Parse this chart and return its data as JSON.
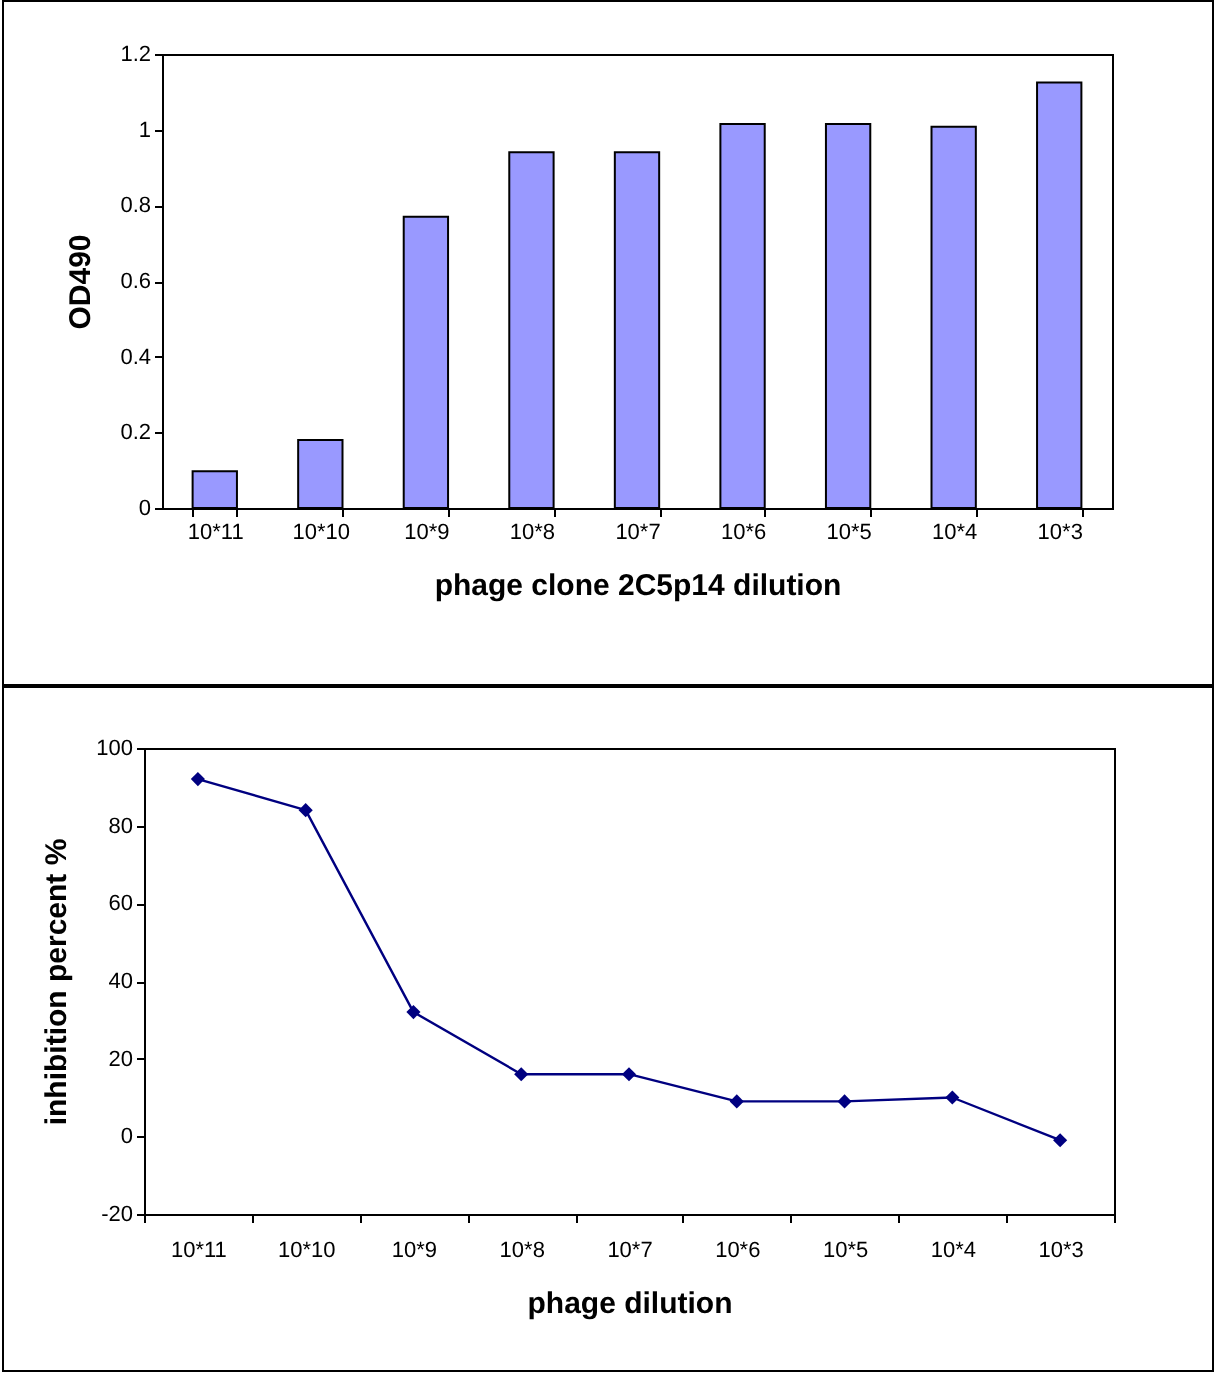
{
  "chart_data": [
    {
      "type": "bar",
      "xlabel": "phage clone 2C5p14 dilution",
      "ylabel": "OD490",
      "categories": [
        "10*11",
        "10*10",
        "10*9",
        "10*8",
        "10*7",
        "10*6",
        "10*5",
        "10*4",
        "10*3"
      ],
      "values": [
        0.097,
        0.18,
        0.77,
        0.94,
        0.94,
        1.015,
        1.015,
        1.008,
        1.125
      ],
      "color": "#9999ff",
      "ylim": [
        0,
        1.2
      ],
      "yticks": [
        0,
        0.2,
        0.4,
        0.6,
        0.8,
        1,
        1.2
      ]
    },
    {
      "type": "line",
      "xlabel": "phage dilution",
      "ylabel": "inhibition percent %",
      "categories": [
        "10*11",
        "10*10",
        "10*9",
        "10*8",
        "10*7",
        "10*6",
        "10*5",
        "10*4",
        "10*3"
      ],
      "values": [
        92,
        84,
        32,
        16,
        16,
        9,
        9,
        10,
        -1
      ],
      "color": "#000080",
      "marker": "diamond",
      "line_style": "solid",
      "ylim": [
        -20,
        100
      ],
      "yticks": [
        -20,
        0,
        20,
        40,
        60,
        80,
        100
      ]
    }
  ]
}
